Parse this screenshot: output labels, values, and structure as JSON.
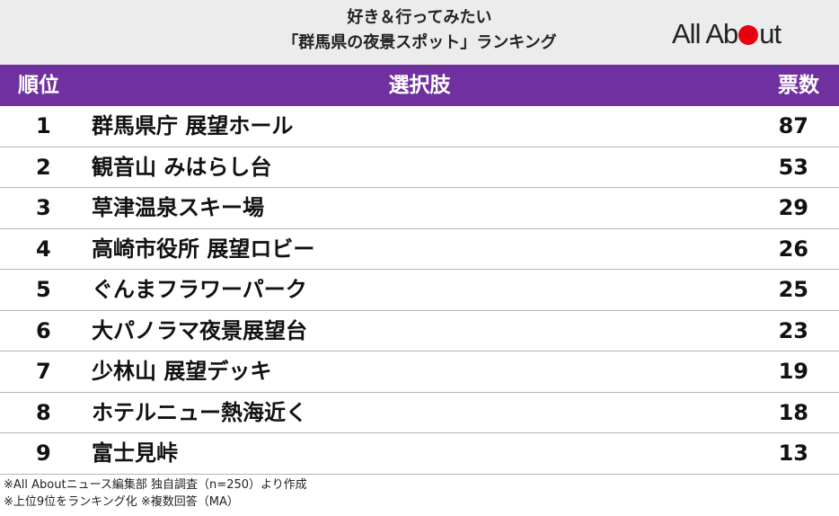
{
  "title_line1": "好き＆行ってみたい",
  "title_line2": "「群馬県の夜景スポット」ランキング",
  "logo": "AllAbout",
  "columns": {
    "rank": "順位",
    "choice": "選択肢",
    "votes": "票数"
  },
  "colors": {
    "header_bar": "#7030a0",
    "logo_dot": "#e60012"
  },
  "chart_data": {
    "type": "table",
    "columns": [
      "順位",
      "選択肢",
      "票数"
    ],
    "rows": [
      {
        "rank": "1",
        "choice": "群馬県庁 展望ホール",
        "votes": 87
      },
      {
        "rank": "2",
        "choice": "観音山 みはらし台",
        "votes": 53
      },
      {
        "rank": "3",
        "choice": "草津温泉スキー場",
        "votes": 29
      },
      {
        "rank": "4",
        "choice": "高崎市役所 展望ロビー",
        "votes": 26
      },
      {
        "rank": "5",
        "choice": "ぐんまフラワーパーク",
        "votes": 25
      },
      {
        "rank": "6",
        "choice": "大パノラマ夜景展望台",
        "votes": 23
      },
      {
        "rank": "7",
        "choice": "少林山 展望デッキ",
        "votes": 19
      },
      {
        "rank": "8",
        "choice": "ホテルニュー熱海近く",
        "votes": 18
      },
      {
        "rank": "9",
        "choice": "富士見峠",
        "votes": 13
      }
    ]
  },
  "notes": [
    "※All Aboutニュース編集部 独自調査（n=250）より作成",
    "※上位9位をランキング化 ※複数回答（MA）"
  ]
}
